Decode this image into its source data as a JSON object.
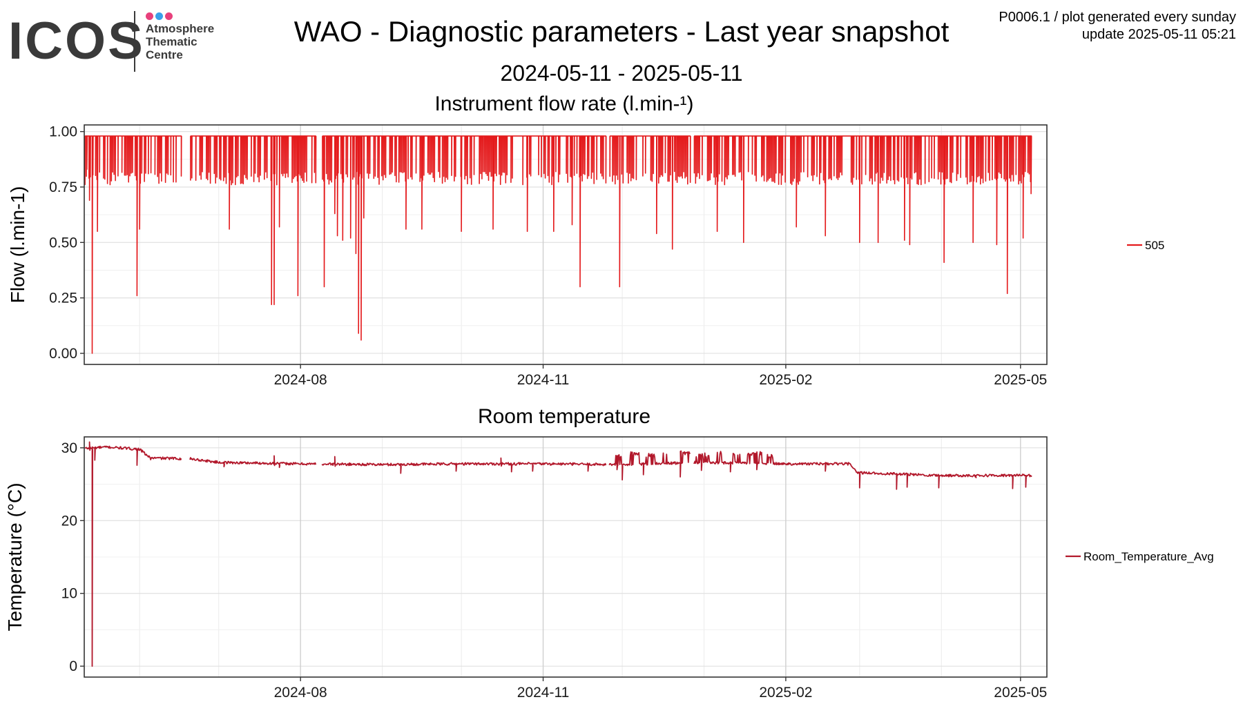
{
  "logo": {
    "word": "ICOS",
    "lines": [
      "Atmosphere",
      "Thematic",
      "Centre"
    ],
    "dot_colors": [
      "#e8407c",
      "#3aa0ea",
      "#e8407c"
    ],
    "text_color": "#3a3a3a"
  },
  "header": {
    "title": "WAO - Diagnostic parameters - Last year snapshot",
    "date_range": "2024-05-11 - 2025-05-11",
    "meta_line1": "P0006.1 / plot generated every sunday",
    "meta_line2": "update  2025-05-11 05:21"
  },
  "chart_data": [
    {
      "type": "line",
      "title": "Instrument flow rate (l.min-¹)",
      "ylabel": "Flow (l.min-1)",
      "xlabel": "",
      "xlim": [
        "2024-05-11",
        "2025-05-11"
      ],
      "ylim": [
        -0.05,
        1.03
      ],
      "yticks": [
        0.0,
        0.25,
        0.5,
        0.75,
        1.0
      ],
      "ytick_labels": [
        "0.00",
        "0.25",
        "0.50",
        "0.75",
        "1.00"
      ],
      "xticks": [
        "2024-08-01",
        "2024-11-01",
        "2025-02-01",
        "2025-05-01"
      ],
      "xtick_labels": [
        "2024-08",
        "2024-11",
        "2025-02",
        "2025-05"
      ],
      "grid": true,
      "legend": "right",
      "series": [
        {
          "name": "505",
          "color": "#e41a1c",
          "baseline": 0.98,
          "typical_dip": 0.79,
          "gaps": [
            [
              "2024-06-17",
              "2024-06-20"
            ],
            [
              "2024-08-07",
              "2024-08-09"
            ],
            [
              "2024-11-25",
              "2024-11-26"
            ],
            [
              "2024-12-27",
              "2024-12-28"
            ]
          ],
          "spikes": [
            [
              "2024-05-12",
              0.83
            ],
            [
              "2024-05-13",
              0.69
            ],
            [
              "2024-05-14",
              0.0
            ],
            [
              "2024-05-16",
              0.55
            ],
            [
              "2024-05-31",
              0.26
            ],
            [
              "2024-06-01",
              0.56
            ],
            [
              "2024-07-05",
              0.56
            ],
            [
              "2024-07-21",
              0.22
            ],
            [
              "2024-07-22",
              0.22
            ],
            [
              "2024-07-23",
              0.76
            ],
            [
              "2024-07-24",
              0.57
            ],
            [
              "2024-07-31",
              0.26
            ],
            [
              "2024-08-10",
              0.3
            ],
            [
              "2024-08-14",
              0.63
            ],
            [
              "2024-08-15",
              0.53
            ],
            [
              "2024-08-17",
              0.51
            ],
            [
              "2024-08-20",
              0.52
            ],
            [
              "2024-08-22",
              0.45
            ],
            [
              "2024-08-23",
              0.09
            ],
            [
              "2024-08-24",
              0.06
            ],
            [
              "2024-08-25",
              0.61
            ],
            [
              "2024-09-10",
              0.56
            ],
            [
              "2024-09-16",
              0.56
            ],
            [
              "2024-10-01",
              0.55
            ],
            [
              "2024-10-13",
              0.56
            ],
            [
              "2024-10-26",
              0.55
            ],
            [
              "2024-11-05",
              0.55
            ],
            [
              "2024-11-12",
              0.58
            ],
            [
              "2024-11-15",
              0.3
            ],
            [
              "2024-11-30",
              0.3
            ],
            [
              "2024-12-14",
              0.54
            ],
            [
              "2024-12-20",
              0.47
            ],
            [
              "2024-12-28",
              0.48
            ],
            [
              "2025-01-06",
              0.55
            ],
            [
              "2025-01-16",
              0.5
            ],
            [
              "2025-02-05",
              0.57
            ],
            [
              "2025-02-16",
              0.53
            ],
            [
              "2025-03-01",
              0.5
            ],
            [
              "2025-03-08",
              0.5
            ],
            [
              "2025-03-18",
              0.51
            ],
            [
              "2025-03-20",
              0.49
            ],
            [
              "2025-04-02",
              0.41
            ],
            [
              "2025-04-13",
              0.5
            ],
            [
              "2025-04-22",
              0.49
            ],
            [
              "2025-04-26",
              0.27
            ],
            [
              "2025-05-02",
              0.52
            ],
            [
              "2025-05-05",
              0.72
            ],
            [
              "2025-05-08",
              0.55
            ]
          ]
        }
      ]
    },
    {
      "type": "line",
      "title": "Room temperature",
      "ylabel": "Temperature (°C)",
      "xlabel": "",
      "xlim": [
        "2024-05-11",
        "2025-05-11"
      ],
      "ylim": [
        -1.5,
        31.5
      ],
      "yticks": [
        0,
        10,
        20,
        30
      ],
      "ytick_labels": [
        "0",
        "10",
        "20",
        "30"
      ],
      "xticks": [
        "2024-08-01",
        "2024-11-01",
        "2025-02-01",
        "2025-05-01"
      ],
      "xtick_labels": [
        "2024-08",
        "2024-11",
        "2025-02",
        "2025-05"
      ],
      "grid": true,
      "legend": "right",
      "series": [
        {
          "name": "Room_Temperature_Avg",
          "color": "#b2182b",
          "levels": [
            [
              "2024-05-11",
              29.9
            ],
            [
              "2024-05-14",
              30.0
            ],
            [
              "2024-05-20",
              30.1
            ],
            [
              "2024-06-01",
              29.8
            ],
            [
              "2024-06-05",
              28.6
            ],
            [
              "2024-06-20",
              28.5
            ],
            [
              "2024-07-01",
              28.0
            ],
            [
              "2024-08-01",
              27.8
            ],
            [
              "2024-09-01",
              27.7
            ],
            [
              "2024-10-01",
              27.8
            ],
            [
              "2024-11-01",
              27.8
            ],
            [
              "2024-12-01",
              27.7
            ],
            [
              "2025-01-01",
              28.0
            ],
            [
              "2025-02-01",
              27.8
            ],
            [
              "2025-02-25",
              27.8
            ],
            [
              "2025-02-28",
              26.6
            ],
            [
              "2025-03-15",
              26.4
            ],
            [
              "2025-04-01",
              26.2
            ],
            [
              "2025-05-11",
              26.2
            ]
          ],
          "gaps": [
            [
              "2024-06-17",
              "2024-06-20"
            ],
            [
              "2024-08-07",
              "2024-08-09"
            ],
            [
              "2024-11-25",
              "2024-11-26"
            ],
            [
              "2024-12-27",
              "2024-12-28"
            ]
          ],
          "spikes": [
            [
              "2024-05-13",
              30.8
            ],
            [
              "2024-05-14",
              0.0
            ],
            [
              "2024-05-15",
              28.3
            ],
            [
              "2024-05-31",
              27.6
            ],
            [
              "2024-06-05",
              28.6
            ],
            [
              "2024-07-03",
              27.4
            ],
            [
              "2024-07-22",
              28.9
            ],
            [
              "2024-07-24",
              27.3
            ],
            [
              "2024-08-09",
              26.5
            ],
            [
              "2024-08-14",
              28.8
            ],
            [
              "2024-09-08",
              26.5
            ],
            [
              "2024-09-29",
              26.8
            ],
            [
              "2024-10-16",
              28.6
            ],
            [
              "2024-10-20",
              26.7
            ],
            [
              "2024-10-28",
              26.8
            ],
            [
              "2024-11-18",
              26.8
            ],
            [
              "2024-11-29",
              27.0
            ],
            [
              "2024-12-01",
              25.6
            ],
            [
              "2024-12-09",
              26.3
            ],
            [
              "2024-12-23",
              26.0
            ],
            [
              "2024-12-31",
              26.9
            ],
            [
              "2025-01-11",
              26.7
            ],
            [
              "2025-01-21",
              27.0
            ],
            [
              "2025-02-16",
              26.8
            ],
            [
              "2025-03-01",
              24.5
            ],
            [
              "2025-03-15",
              24.3
            ],
            [
              "2025-03-19",
              24.6
            ],
            [
              "2025-03-31",
              24.5
            ],
            [
              "2025-04-14",
              26.0
            ],
            [
              "2025-04-28",
              24.4
            ],
            [
              "2025-05-03",
              24.6
            ],
            [
              "2025-05-07",
              26.5
            ]
          ],
          "oscillation_periods": [
            [
              "2024-11-28",
              "2024-12-01",
              29.3
            ],
            [
              "2024-12-04",
              "2024-12-08",
              29.5
            ],
            [
              "2024-12-10",
              "2024-12-14",
              29.3
            ],
            [
              "2024-12-16",
              "2024-12-18",
              29.4
            ],
            [
              "2024-12-23",
              "2024-12-27",
              29.6
            ],
            [
              "2024-12-29",
              "2025-01-03",
              29.3
            ],
            [
              "2025-01-06",
              "2025-01-08",
              29.6
            ],
            [
              "2025-01-12",
              "2025-01-15",
              29.5
            ],
            [
              "2025-01-17",
              "2025-01-23",
              29.5
            ],
            [
              "2025-01-25",
              "2025-01-28",
              29.2
            ]
          ]
        }
      ]
    }
  ]
}
